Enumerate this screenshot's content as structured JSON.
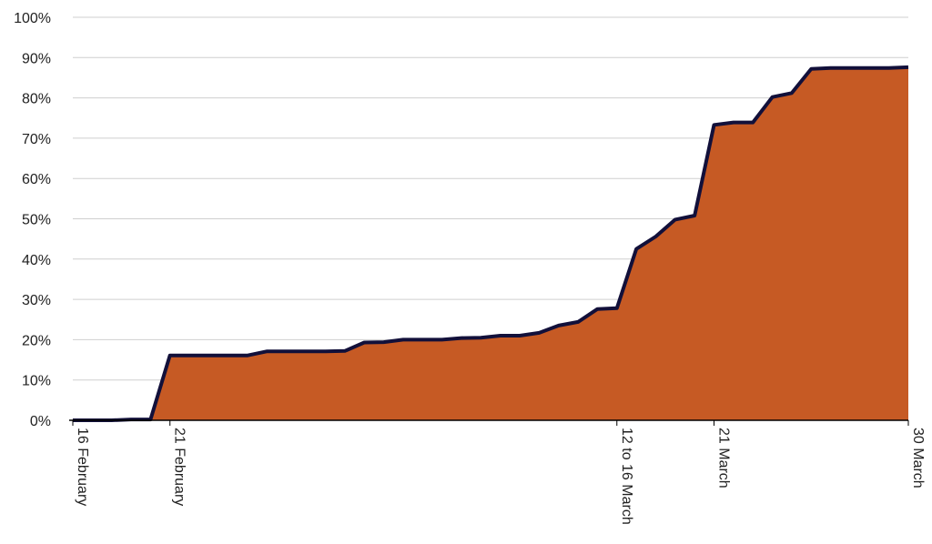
{
  "chart_data": {
    "type": "area",
    "title": "",
    "xlabel": "",
    "ylabel": "",
    "ylim": [
      0,
      1
    ],
    "y_tick_labels": [
      "0%",
      "10%",
      "20%",
      "30%",
      "40%",
      "50%",
      "60%",
      "70%",
      "80%",
      "90%",
      "100%"
    ],
    "y_tick_values": [
      0,
      0.1,
      0.2,
      0.3,
      0.4,
      0.5,
      0.6,
      0.7,
      0.8,
      0.9,
      1.0
    ],
    "x_tick_labels": [
      {
        "label": "16 February",
        "at": 0
      },
      {
        "label": "21 February",
        "at": 5
      },
      {
        "label": "12 to 16 March",
        "at": 28
      },
      {
        "label": "21 March",
        "at": 33
      },
      {
        "label": "30 March",
        "at": 43
      }
    ],
    "grid": true,
    "legend": "none",
    "colors": {
      "fill": "#C65A24",
      "line": "#12103A",
      "grid": "#cfcfcf",
      "axis": "#000000"
    },
    "series": [
      {
        "values": [
          0.0,
          0.0,
          0.0,
          0.002,
          0.002,
          0.161,
          0.161,
          0.161,
          0.161,
          0.161,
          0.171,
          0.171,
          0.171,
          0.171,
          0.172,
          0.193,
          0.194,
          0.2,
          0.2,
          0.2,
          0.204,
          0.205,
          0.21,
          0.21,
          0.217,
          0.235,
          0.244,
          0.276,
          0.278,
          0.425,
          0.456,
          0.498,
          0.508,
          0.733,
          0.739,
          0.739,
          0.802,
          0.812,
          0.872,
          0.874,
          0.874,
          0.874,
          0.874,
          0.876
        ]
      }
    ]
  }
}
